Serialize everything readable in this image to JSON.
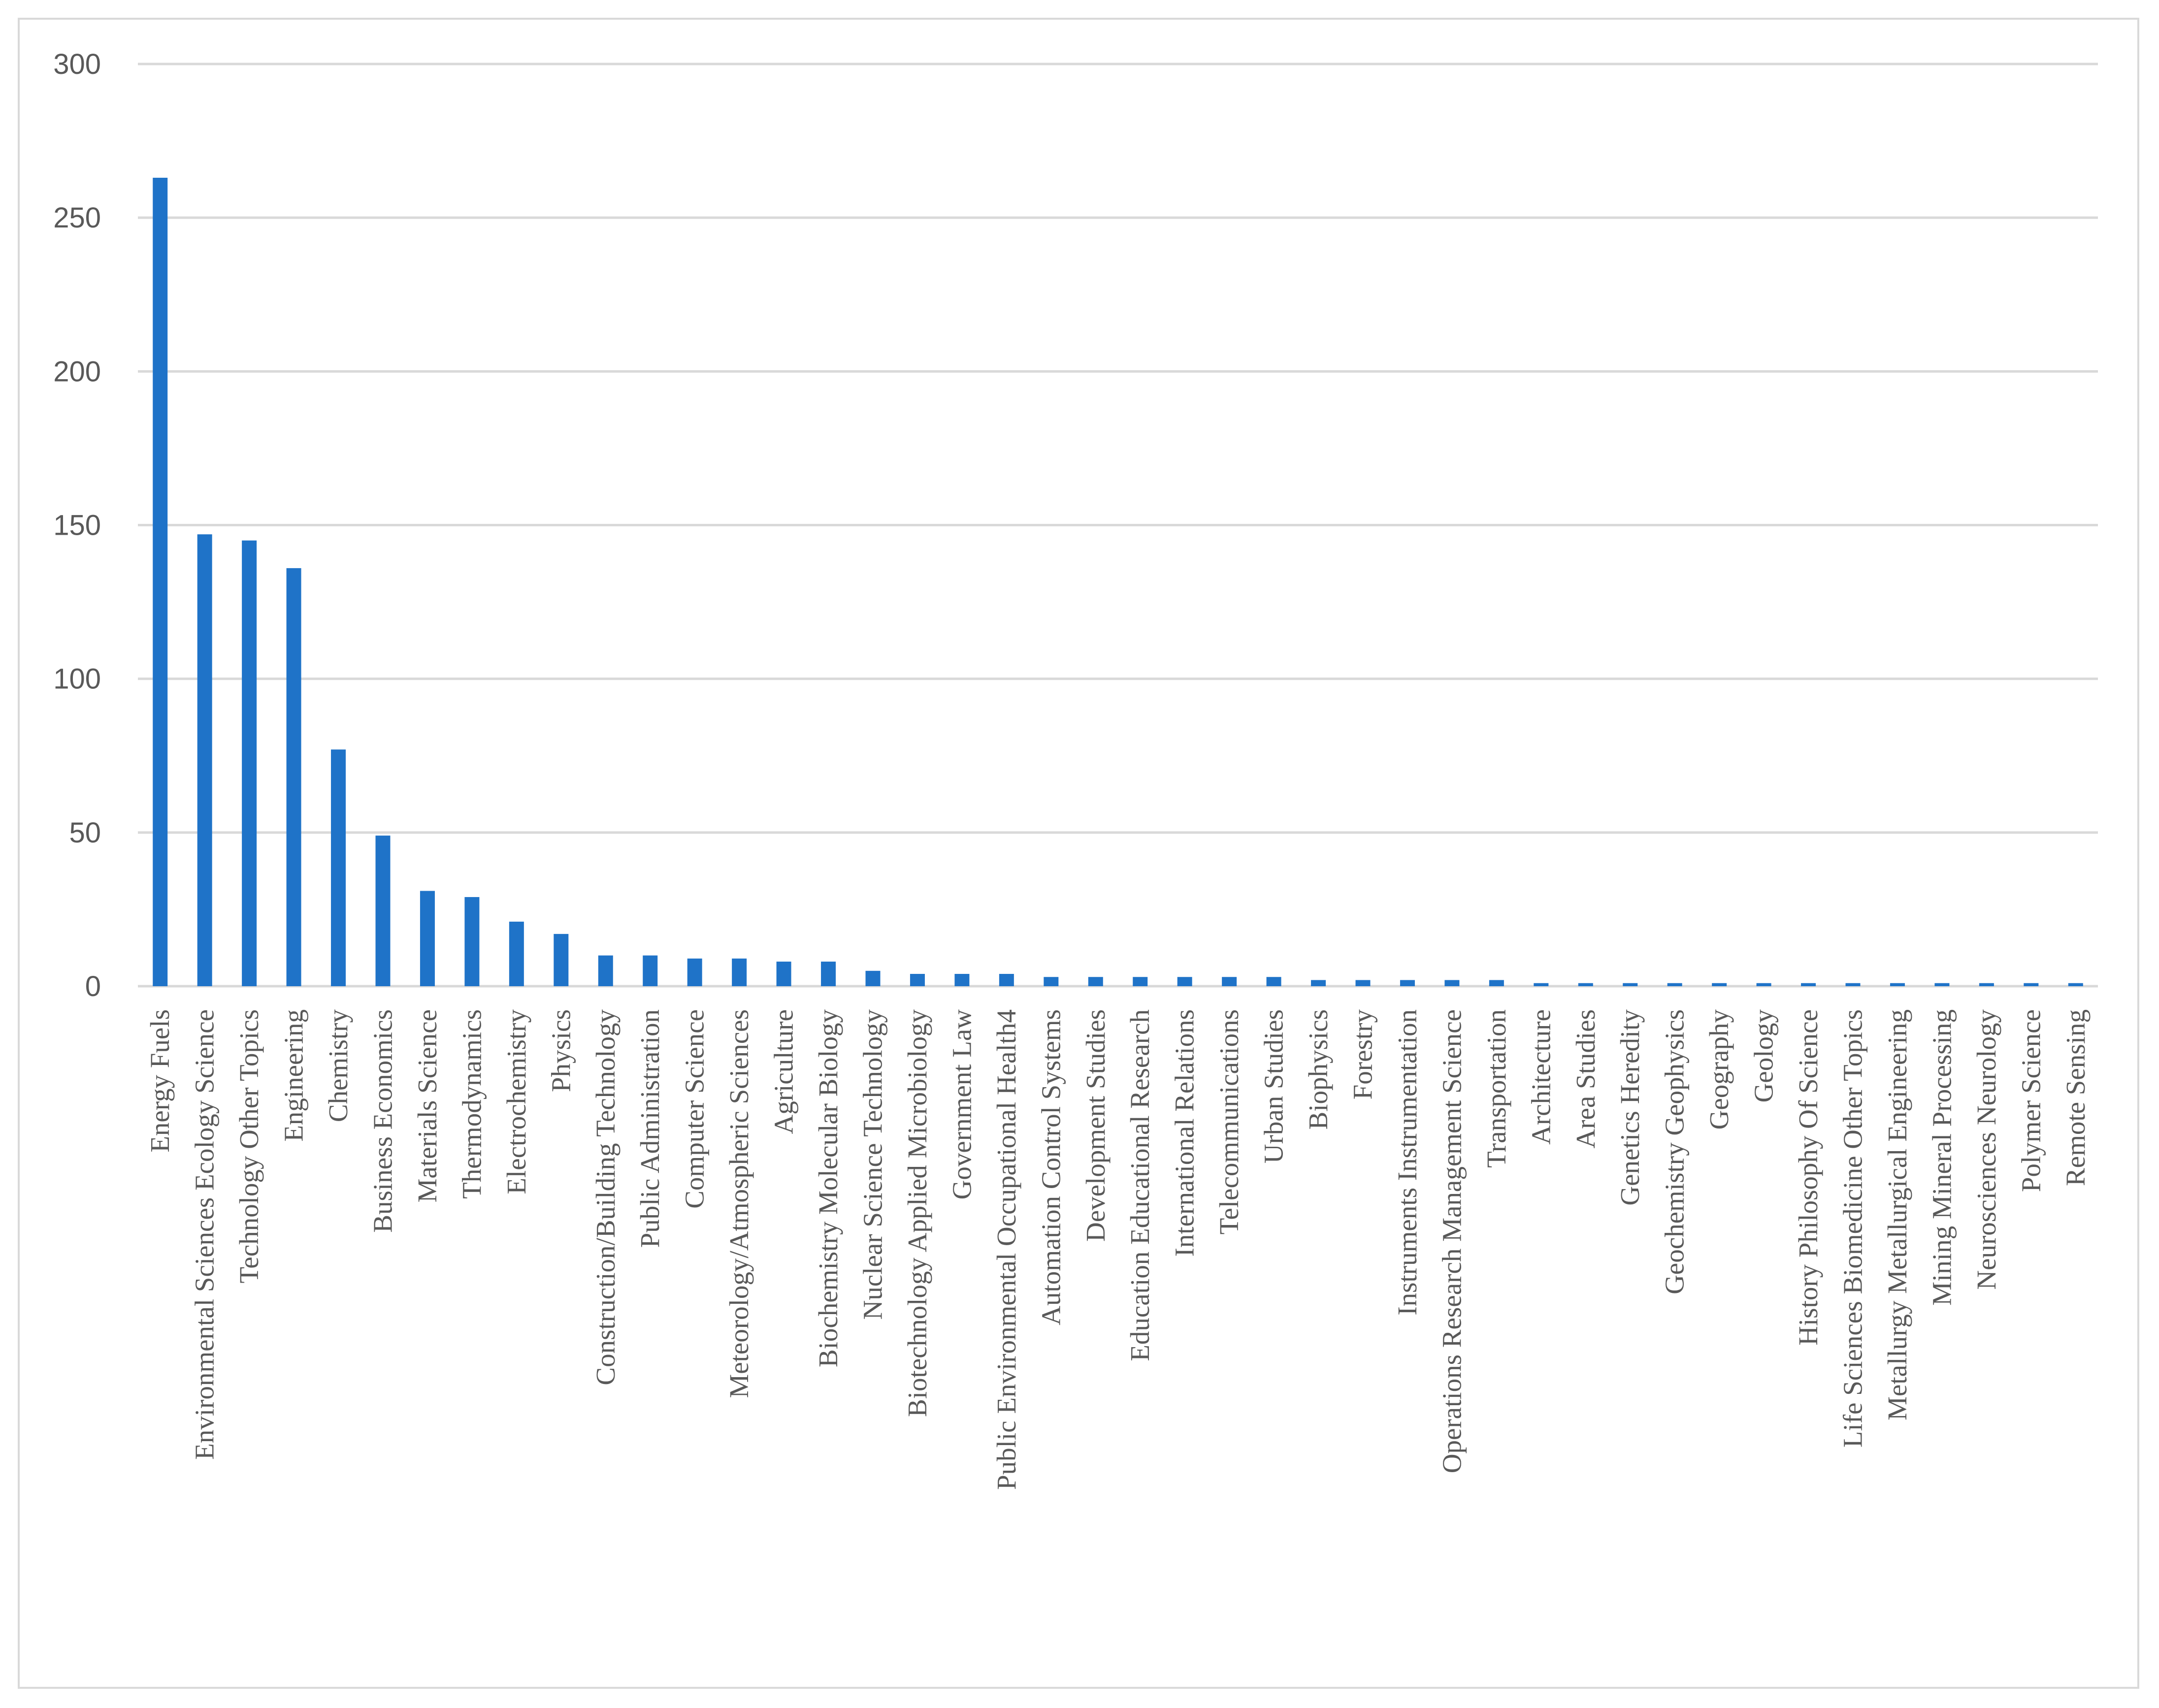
{
  "chart_data": {
    "type": "bar",
    "title": "",
    "xlabel": "",
    "ylabel": "",
    "ylim": [
      0,
      300
    ],
    "yticks": [
      0,
      50,
      100,
      150,
      200,
      250,
      300
    ],
    "grid": true,
    "legend": "none",
    "bar_color": "#1f73c8",
    "categories": [
      "Energy Fuels",
      "Environmental Sciences Ecology Science",
      "Technology Other Topics",
      "Engineering",
      "Chemistry",
      "Business Economics",
      "Materials Science",
      "Thermodynamics",
      "Electrochemistry",
      "Physics",
      "Construction/Building Technology",
      "Public Administration",
      "Computer Science",
      "Meteorology/Atmospheric Sciences",
      "Agriculture",
      "Biochemistry Molecular Biology",
      "Nuclear Science Technology",
      "Biotechnology Applied Microbiology",
      "Government Law",
      "Public Environmental Occupational Health4",
      "Automation Control Systems",
      "Development Studies",
      "Education Educational Research",
      "International Relations",
      "Telecommunications",
      "Urban Studies",
      "Biophysics",
      "Forestry",
      "Instruments Instrumentation",
      "Operations Research Management Science",
      "Transportation",
      "Architecture",
      "Area Studies",
      "Genetics Heredity",
      "Geochemistry Geophysics",
      "Geography",
      "Geology",
      "History Philosophy Of Science",
      "Life Sciences Biomedicine Other Topics",
      "Metallurgy Metallurgical Engineering",
      "Mining Mineral Processing",
      "Neurosciences Neurology",
      "Polymer Science",
      "Remote Sensing"
    ],
    "values": [
      263,
      147,
      145,
      136,
      77,
      49,
      31,
      29,
      21,
      17,
      10,
      10,
      9,
      9,
      8,
      8,
      5,
      4,
      4,
      4,
      3,
      3,
      3,
      3,
      3,
      3,
      2,
      2,
      2,
      2,
      2,
      1,
      1,
      1,
      1,
      1,
      1,
      1,
      1,
      1,
      1,
      1,
      1,
      1
    ]
  }
}
